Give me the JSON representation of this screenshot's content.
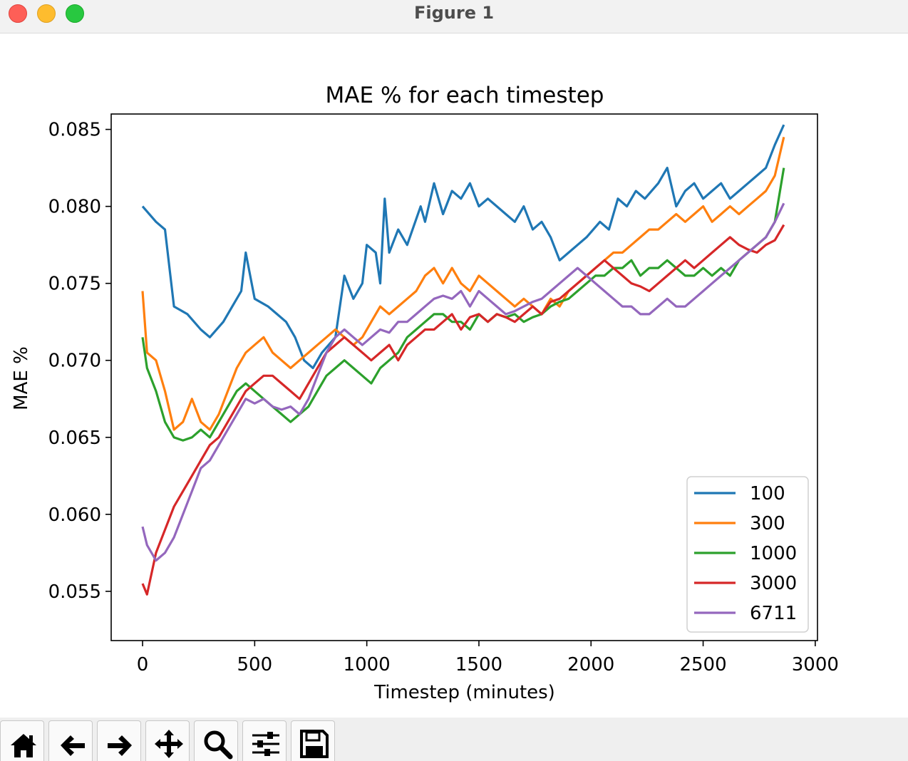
{
  "window": {
    "title": "Figure 1"
  },
  "toolbar": {
    "buttons": [
      {
        "name": "home-button",
        "icon": "home-icon"
      },
      {
        "name": "back-button",
        "icon": "arrow-left-icon"
      },
      {
        "name": "forward-button",
        "icon": "arrow-right-icon"
      },
      {
        "name": "pan-button",
        "icon": "move-icon"
      },
      {
        "name": "zoom-button",
        "icon": "magnifier-icon"
      },
      {
        "name": "configure-subplots-button",
        "icon": "sliders-icon"
      },
      {
        "name": "save-button",
        "icon": "floppy-disk-icon"
      }
    ]
  },
  "chart_data": {
    "type": "line",
    "title": "MAE % for each timestep",
    "xlabel": "Timestep (minutes)",
    "ylabel": "MAE %",
    "xlim": [
      -140,
      3010
    ],
    "ylim": [
      0.0518,
      0.086
    ],
    "xticks": [
      0,
      500,
      1000,
      1500,
      2000,
      2500,
      3000
    ],
    "xtick_labels": [
      "0",
      "500",
      "1000",
      "1500",
      "2000",
      "2500",
      "3000"
    ],
    "yticks": [
      0.055,
      0.06,
      0.065,
      0.07,
      0.075,
      0.08,
      0.085
    ],
    "ytick_labels": [
      "0.055",
      "0.060",
      "0.065",
      "0.070",
      "0.075",
      "0.080",
      "0.085"
    ],
    "grid": false,
    "legend_position": "lower-right",
    "series": [
      {
        "name": "100",
        "color": "#1f77b4",
        "x": [
          0,
          60,
          100,
          140,
          200,
          260,
          300,
          360,
          400,
          440,
          460,
          500,
          560,
          600,
          640,
          680,
          720,
          760,
          800,
          860,
          900,
          940,
          980,
          1000,
          1040,
          1060,
          1080,
          1100,
          1140,
          1180,
          1240,
          1260,
          1300,
          1340,
          1380,
          1420,
          1460,
          1500,
          1540,
          1580,
          1620,
          1660,
          1700,
          1740,
          1780,
          1820,
          1860,
          1900,
          1940,
          1980,
          2040,
          2080,
          2120,
          2160,
          2200,
          2240,
          2300,
          2340,
          2380,
          2420,
          2460,
          2500,
          2540,
          2580,
          2620,
          2660,
          2700,
          2740,
          2780,
          2820,
          2860
        ],
        "y": [
          0.08,
          0.079,
          0.0785,
          0.0735,
          0.073,
          0.072,
          0.0715,
          0.0725,
          0.0735,
          0.0745,
          0.077,
          0.074,
          0.0735,
          0.073,
          0.0725,
          0.0715,
          0.07,
          0.0695,
          0.0705,
          0.0715,
          0.0755,
          0.074,
          0.075,
          0.0775,
          0.077,
          0.075,
          0.0805,
          0.077,
          0.0785,
          0.0775,
          0.08,
          0.079,
          0.0815,
          0.0795,
          0.081,
          0.0805,
          0.0815,
          0.08,
          0.0805,
          0.08,
          0.0795,
          0.079,
          0.08,
          0.0785,
          0.079,
          0.078,
          0.0765,
          0.077,
          0.0775,
          0.078,
          0.079,
          0.0785,
          0.0805,
          0.08,
          0.081,
          0.0805,
          0.0815,
          0.0825,
          0.08,
          0.081,
          0.0815,
          0.0805,
          0.081,
          0.0815,
          0.0805,
          0.081,
          0.0815,
          0.082,
          0.0825,
          0.084,
          0.0853
        ]
      },
      {
        "name": "300",
        "color": "#ff7f0e",
        "x": [
          0,
          20,
          60,
          100,
          140,
          180,
          220,
          260,
          300,
          340,
          380,
          420,
          460,
          500,
          540,
          580,
          620,
          660,
          700,
          740,
          780,
          820,
          860,
          900,
          940,
          980,
          1020,
          1060,
          1100,
          1140,
          1180,
          1220,
          1260,
          1300,
          1340,
          1380,
          1420,
          1460,
          1500,
          1540,
          1580,
          1620,
          1660,
          1700,
          1740,
          1780,
          1820,
          1860,
          1900,
          1940,
          1980,
          2020,
          2060,
          2100,
          2140,
          2180,
          2220,
          2260,
          2300,
          2340,
          2380,
          2420,
          2460,
          2500,
          2540,
          2580,
          2620,
          2660,
          2700,
          2740,
          2780,
          2820,
          2860
        ],
        "y": [
          0.0745,
          0.0705,
          0.07,
          0.068,
          0.0655,
          0.066,
          0.0675,
          0.066,
          0.0655,
          0.0665,
          0.068,
          0.0695,
          0.0705,
          0.071,
          0.0715,
          0.0705,
          0.07,
          0.0695,
          0.07,
          0.0705,
          0.071,
          0.0715,
          0.072,
          0.0715,
          0.071,
          0.0715,
          0.0725,
          0.0735,
          0.073,
          0.0735,
          0.074,
          0.0745,
          0.0755,
          0.076,
          0.075,
          0.076,
          0.075,
          0.0745,
          0.0755,
          0.075,
          0.0745,
          0.074,
          0.0735,
          0.074,
          0.0735,
          0.073,
          0.074,
          0.0735,
          0.0745,
          0.075,
          0.0755,
          0.076,
          0.0765,
          0.077,
          0.077,
          0.0775,
          0.078,
          0.0785,
          0.0785,
          0.079,
          0.0795,
          0.079,
          0.0795,
          0.08,
          0.079,
          0.0795,
          0.08,
          0.0795,
          0.08,
          0.0805,
          0.081,
          0.082,
          0.0845
        ]
      },
      {
        "name": "1000",
        "color": "#2ca02c",
        "x": [
          0,
          20,
          60,
          100,
          140,
          180,
          220,
          260,
          300,
          340,
          380,
          420,
          460,
          500,
          540,
          580,
          620,
          660,
          700,
          740,
          780,
          820,
          860,
          900,
          940,
          980,
          1020,
          1060,
          1100,
          1140,
          1180,
          1220,
          1260,
          1300,
          1340,
          1380,
          1420,
          1460,
          1500,
          1540,
          1580,
          1620,
          1660,
          1700,
          1740,
          1780,
          1820,
          1860,
          1900,
          1940,
          1980,
          2020,
          2060,
          2100,
          2140,
          2180,
          2220,
          2260,
          2300,
          2340,
          2380,
          2420,
          2460,
          2500,
          2540,
          2580,
          2620,
          2660,
          2700,
          2740,
          2780,
          2820,
          2860
        ],
        "y": [
          0.0715,
          0.0695,
          0.068,
          0.066,
          0.065,
          0.0648,
          0.065,
          0.0655,
          0.065,
          0.066,
          0.067,
          0.068,
          0.0685,
          0.068,
          0.0675,
          0.067,
          0.0665,
          0.066,
          0.0665,
          0.067,
          0.068,
          0.069,
          0.0695,
          0.07,
          0.0695,
          0.069,
          0.0685,
          0.0695,
          0.07,
          0.0705,
          0.0715,
          0.072,
          0.0725,
          0.073,
          0.073,
          0.0725,
          0.0725,
          0.072,
          0.073,
          0.0725,
          0.073,
          0.0728,
          0.073,
          0.0725,
          0.0728,
          0.073,
          0.0735,
          0.0738,
          0.074,
          0.0745,
          0.075,
          0.0755,
          0.0755,
          0.076,
          0.076,
          0.0765,
          0.0755,
          0.076,
          0.076,
          0.0765,
          0.076,
          0.0755,
          0.0755,
          0.076,
          0.0755,
          0.076,
          0.0755,
          0.0765,
          0.077,
          0.0775,
          0.078,
          0.079,
          0.0825
        ]
      },
      {
        "name": "3000",
        "color": "#d62728",
        "x": [
          0,
          20,
          60,
          100,
          140,
          180,
          220,
          260,
          300,
          340,
          380,
          420,
          460,
          500,
          540,
          580,
          620,
          660,
          700,
          740,
          780,
          820,
          860,
          900,
          940,
          980,
          1020,
          1060,
          1100,
          1140,
          1180,
          1220,
          1260,
          1300,
          1340,
          1380,
          1420,
          1460,
          1500,
          1540,
          1580,
          1620,
          1660,
          1700,
          1740,
          1780,
          1820,
          1860,
          1900,
          1940,
          1980,
          2020,
          2060,
          2100,
          2140,
          2180,
          2220,
          2260,
          2300,
          2340,
          2380,
          2420,
          2460,
          2500,
          2540,
          2580,
          2620,
          2660,
          2700,
          2740,
          2780,
          2820,
          2860
        ],
        "y": [
          0.0555,
          0.0548,
          0.0575,
          0.059,
          0.0605,
          0.0615,
          0.0625,
          0.0635,
          0.0645,
          0.065,
          0.066,
          0.067,
          0.068,
          0.0685,
          0.069,
          0.069,
          0.0685,
          0.068,
          0.0675,
          0.0685,
          0.0695,
          0.0705,
          0.071,
          0.0715,
          0.071,
          0.0705,
          0.07,
          0.0705,
          0.071,
          0.07,
          0.071,
          0.0715,
          0.072,
          0.072,
          0.0725,
          0.073,
          0.072,
          0.0728,
          0.073,
          0.0725,
          0.073,
          0.0728,
          0.0725,
          0.073,
          0.0735,
          0.073,
          0.0738,
          0.074,
          0.0745,
          0.075,
          0.0755,
          0.076,
          0.0765,
          0.076,
          0.0755,
          0.075,
          0.0748,
          0.0745,
          0.075,
          0.0755,
          0.076,
          0.0765,
          0.076,
          0.0765,
          0.077,
          0.0775,
          0.078,
          0.0775,
          0.0772,
          0.077,
          0.0775,
          0.0778,
          0.0788
        ]
      },
      {
        "name": "6711",
        "color": "#9467bd",
        "x": [
          0,
          20,
          60,
          100,
          140,
          180,
          220,
          260,
          300,
          340,
          380,
          420,
          460,
          500,
          540,
          580,
          620,
          660,
          700,
          740,
          780,
          820,
          860,
          900,
          940,
          980,
          1020,
          1060,
          1100,
          1140,
          1180,
          1220,
          1260,
          1300,
          1340,
          1380,
          1420,
          1460,
          1500,
          1540,
          1580,
          1620,
          1660,
          1700,
          1740,
          1780,
          1820,
          1860,
          1900,
          1940,
          1980,
          2020,
          2060,
          2100,
          2140,
          2180,
          2220,
          2260,
          2300,
          2340,
          2380,
          2420,
          2460,
          2500,
          2540,
          2580,
          2620,
          2660,
          2700,
          2740,
          2780,
          2820,
          2860
        ],
        "y": [
          0.0592,
          0.058,
          0.057,
          0.0575,
          0.0585,
          0.06,
          0.0615,
          0.063,
          0.0635,
          0.0645,
          0.0655,
          0.0665,
          0.0675,
          0.0672,
          0.0675,
          0.067,
          0.0668,
          0.067,
          0.0665,
          0.0675,
          0.069,
          0.0705,
          0.0715,
          0.072,
          0.0715,
          0.071,
          0.0715,
          0.072,
          0.0718,
          0.0725,
          0.0725,
          0.073,
          0.0735,
          0.074,
          0.0742,
          0.074,
          0.0745,
          0.0735,
          0.0745,
          0.074,
          0.0735,
          0.073,
          0.0732,
          0.0735,
          0.0738,
          0.074,
          0.0745,
          0.075,
          0.0755,
          0.076,
          0.0755,
          0.075,
          0.0745,
          0.074,
          0.0735,
          0.0735,
          0.073,
          0.073,
          0.0735,
          0.074,
          0.0735,
          0.0735,
          0.074,
          0.0745,
          0.075,
          0.0755,
          0.076,
          0.0765,
          0.077,
          0.0775,
          0.078,
          0.079,
          0.0802
        ]
      }
    ]
  }
}
